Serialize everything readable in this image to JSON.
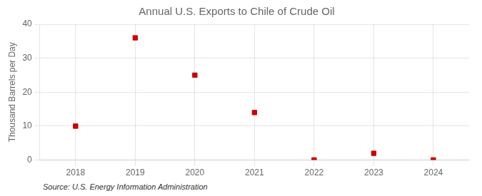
{
  "chart_data": {
    "type": "scatter",
    "title": "Annual U.S. Exports to Chile of Crude Oil",
    "ylabel": "Thousand Barrels per Day",
    "annotation": "Source: U.S. Energy Information Administration",
    "x": [
      2018,
      2019,
      2020,
      2021,
      2022,
      2023,
      2024
    ],
    "values": [
      10.0,
      36.0,
      25.0,
      14.0,
      0.05,
      2.0,
      0.05
    ],
    "color": "#cc0000",
    "marker": "square",
    "xlim": [
      2017.4,
      2024.6
    ],
    "xticks": [
      2018,
      2019,
      2020,
      2021,
      2022,
      2023,
      2024
    ],
    "ylim": [
      0,
      40
    ],
    "yticks": [
      0,
      10,
      20,
      30,
      40
    ],
    "grid": true
  }
}
